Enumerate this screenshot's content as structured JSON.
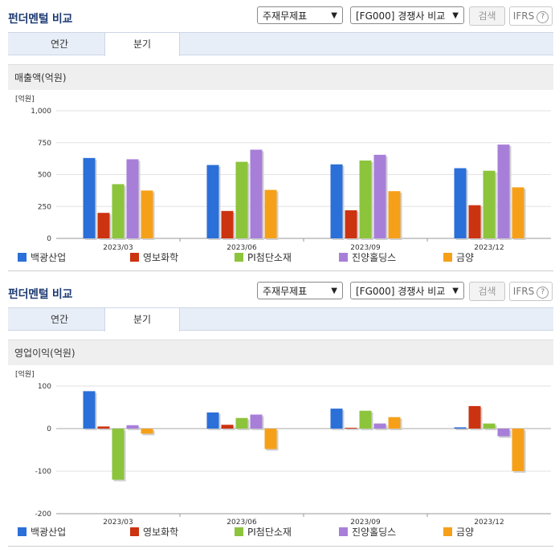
{
  "panels": [
    {
      "title": "펀더멘털 비교",
      "select1": "주재무제표",
      "select2": "[FG000] 경쟁사 비교",
      "search_label": "검색",
      "ifrs_label": "IFRS",
      "tabs": [
        "연간",
        "분기"
      ],
      "active_tab": 1,
      "metric_label": "매출액(억원)"
    },
    {
      "title": "펀더멘털 비교",
      "select1": "주재무제표",
      "select2": "[FG000] 경쟁사 비교",
      "search_label": "검색",
      "ifrs_label": "IFRS",
      "tabs": [
        "연간",
        "분기"
      ],
      "active_tab": 1,
      "metric_label": "영업이익(억원)"
    }
  ],
  "colors": {
    "백광산업": "#2b6fd9",
    "영보화학": "#cc3311",
    "PI첨단소재": "#8cc43c",
    "진양홀딩스": "#a77fd9",
    "금양": "#f6a01a"
  },
  "chart_data": [
    {
      "type": "bar",
      "unit_label": "[억원]",
      "categories": [
        "2023/03",
        "2023/06",
        "2023/09",
        "2023/12"
      ],
      "series": [
        {
          "name": "백광산업",
          "values": [
            630,
            575,
            580,
            550
          ]
        },
        {
          "name": "영보화학",
          "values": [
            200,
            215,
            220,
            260
          ]
        },
        {
          "name": "PI첨단소재",
          "values": [
            425,
            600,
            610,
            530
          ]
        },
        {
          "name": "진양홀딩스",
          "values": [
            620,
            695,
            655,
            735
          ]
        },
        {
          "name": "금양",
          "values": [
            375,
            380,
            370,
            400
          ]
        }
      ],
      "ylim": [
        0,
        1000
      ],
      "yticks": [
        0,
        250,
        500,
        750,
        1000
      ],
      "ytick_labels": [
        "0",
        "250",
        "500",
        "750",
        "1,000"
      ],
      "grid": true,
      "legend": "bottom"
    },
    {
      "type": "bar",
      "unit_label": "[억원]",
      "categories": [
        "2023/03",
        "2023/06",
        "2023/09",
        "2023/12"
      ],
      "series": [
        {
          "name": "백광산업",
          "values": [
            88,
            38,
            47,
            3
          ]
        },
        {
          "name": "영보화학",
          "values": [
            5,
            9,
            2,
            53
          ]
        },
        {
          "name": "PI첨단소재",
          "values": [
            -120,
            25,
            42,
            12
          ]
        },
        {
          "name": "진양홀딩스",
          "values": [
            8,
            33,
            12,
            -18
          ]
        },
        {
          "name": "금양",
          "values": [
            -12,
            -48,
            27,
            -100
          ]
        }
      ],
      "ylim": [
        -200,
        100
      ],
      "yticks": [
        -200,
        -100,
        0,
        100
      ],
      "ytick_labels": [
        "-200",
        "-100",
        "0",
        "100"
      ],
      "grid": true,
      "legend": "bottom"
    }
  ]
}
